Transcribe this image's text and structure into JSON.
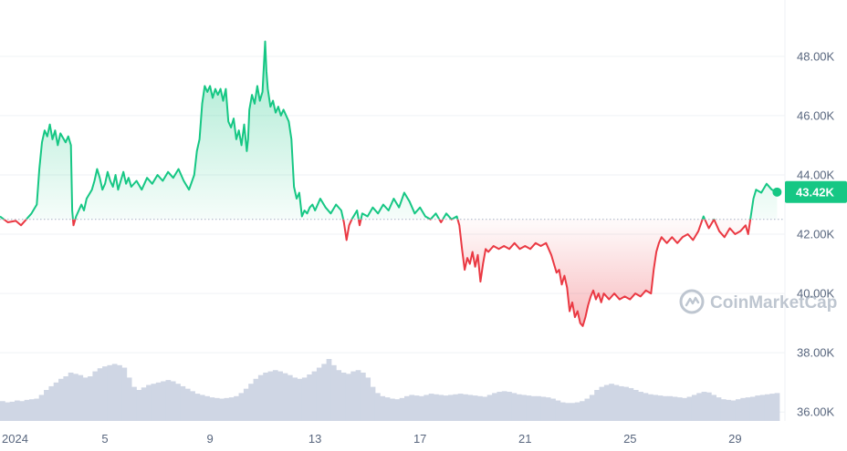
{
  "chart_data": {
    "type": "area",
    "title": "",
    "xlabel": "",
    "ylabel": "",
    "x_tick_labels": [
      "2024",
      "5",
      "9",
      "13",
      "17",
      "21",
      "25",
      "29"
    ],
    "x_tick_days": [
      1,
      5,
      9,
      13,
      17,
      21,
      25,
      29
    ],
    "y_tick_labels": [
      "36.00K",
      "38.00K",
      "40.00K",
      "42.00K",
      "44.00K",
      "46.00K",
      "48.00K"
    ],
    "y_tick_values": [
      36000,
      38000,
      40000,
      42000,
      44000,
      46000,
      48000
    ],
    "ylim": [
      35700,
      49900
    ],
    "xlim": [
      1.0,
      30.9
    ],
    "baseline": 42500,
    "current_price_label": "43.42K",
    "current_price": 43420,
    "colors": {
      "above": "#16c784",
      "below": "#ea3943",
      "price_tag": "#16c784",
      "volume": "#cfd6e4",
      "grid": "#eff2f5",
      "axis_text": "#58667e"
    },
    "watermark": "CoinMarketCap",
    "series": [
      {
        "values": [
          [
            1.0,
            42600
          ],
          [
            1.3,
            42400
          ],
          [
            1.6,
            42450
          ],
          [
            1.8,
            42300
          ],
          [
            2.0,
            42500
          ],
          [
            2.2,
            42700
          ],
          [
            2.4,
            43000
          ],
          [
            2.5,
            44200
          ],
          [
            2.6,
            45100
          ],
          [
            2.7,
            45500
          ],
          [
            2.8,
            45300
          ],
          [
            2.9,
            45700
          ],
          [
            3.0,
            45200
          ],
          [
            3.1,
            45500
          ],
          [
            3.2,
            45000
          ],
          [
            3.3,
            45400
          ],
          [
            3.5,
            45100
          ],
          [
            3.6,
            45300
          ],
          [
            3.7,
            45000
          ],
          [
            3.75,
            42800
          ],
          [
            3.8,
            42300
          ],
          [
            3.9,
            42600
          ],
          [
            4.0,
            42800
          ],
          [
            4.1,
            43000
          ],
          [
            4.2,
            42800
          ],
          [
            4.3,
            43200
          ],
          [
            4.5,
            43500
          ],
          [
            4.6,
            43800
          ],
          [
            4.7,
            44200
          ],
          [
            4.8,
            43900
          ],
          [
            4.9,
            43500
          ],
          [
            5.0,
            43700
          ],
          [
            5.1,
            44100
          ],
          [
            5.2,
            43800
          ],
          [
            5.3,
            43600
          ],
          [
            5.4,
            44000
          ],
          [
            5.5,
            43500
          ],
          [
            5.6,
            43800
          ],
          [
            5.7,
            44100
          ],
          [
            5.8,
            43700
          ],
          [
            5.9,
            43900
          ],
          [
            6.0,
            43600
          ],
          [
            6.2,
            43800
          ],
          [
            6.4,
            43500
          ],
          [
            6.6,
            43900
          ],
          [
            6.8,
            43700
          ],
          [
            7.0,
            44000
          ],
          [
            7.2,
            43800
          ],
          [
            7.4,
            44100
          ],
          [
            7.6,
            43900
          ],
          [
            7.8,
            44200
          ],
          [
            8.0,
            43800
          ],
          [
            8.2,
            43500
          ],
          [
            8.4,
            44000
          ],
          [
            8.5,
            44800
          ],
          [
            8.6,
            45200
          ],
          [
            8.7,
            46400
          ],
          [
            8.8,
            47000
          ],
          [
            8.9,
            46800
          ],
          [
            9.0,
            47000
          ],
          [
            9.1,
            46600
          ],
          [
            9.2,
            46900
          ],
          [
            9.3,
            46700
          ],
          [
            9.4,
            46900
          ],
          [
            9.5,
            46500
          ],
          [
            9.6,
            46900
          ],
          [
            9.7,
            45800
          ],
          [
            9.8,
            45600
          ],
          [
            9.9,
            45900
          ],
          [
            10.0,
            45200
          ],
          [
            10.1,
            45500
          ],
          [
            10.2,
            45000
          ],
          [
            10.3,
            45700
          ],
          [
            10.4,
            44800
          ],
          [
            10.45,
            45200
          ],
          [
            10.5,
            46200
          ],
          [
            10.6,
            46700
          ],
          [
            10.7,
            46400
          ],
          [
            10.8,
            47000
          ],
          [
            10.9,
            46500
          ],
          [
            11.0,
            46800
          ],
          [
            11.1,
            48500
          ],
          [
            11.15,
            47500
          ],
          [
            11.2,
            46900
          ],
          [
            11.3,
            46300
          ],
          [
            11.4,
            46500
          ],
          [
            11.5,
            46100
          ],
          [
            11.6,
            46300
          ],
          [
            11.7,
            46000
          ],
          [
            11.8,
            46200
          ],
          [
            11.9,
            46000
          ],
          [
            12.0,
            45800
          ],
          [
            12.1,
            45200
          ],
          [
            12.2,
            43600
          ],
          [
            12.3,
            43200
          ],
          [
            12.4,
            43400
          ],
          [
            12.5,
            42600
          ],
          [
            12.6,
            42800
          ],
          [
            12.7,
            42700
          ],
          [
            12.8,
            42900
          ],
          [
            12.9,
            43000
          ],
          [
            13.0,
            42800
          ],
          [
            13.2,
            43200
          ],
          [
            13.4,
            42900
          ],
          [
            13.6,
            42700
          ],
          [
            13.8,
            43000
          ],
          [
            14.0,
            42800
          ],
          [
            14.1,
            42400
          ],
          [
            14.2,
            41800
          ],
          [
            14.3,
            42300
          ],
          [
            14.4,
            42500
          ],
          [
            14.6,
            42800
          ],
          [
            14.7,
            42300
          ],
          [
            14.8,
            42700
          ],
          [
            15.0,
            42600
          ],
          [
            15.2,
            42900
          ],
          [
            15.4,
            42700
          ],
          [
            15.6,
            43000
          ],
          [
            15.8,
            42800
          ],
          [
            16.0,
            43200
          ],
          [
            16.2,
            42900
          ],
          [
            16.4,
            43400
          ],
          [
            16.6,
            43100
          ],
          [
            16.8,
            42700
          ],
          [
            17.0,
            42900
          ],
          [
            17.2,
            42600
          ],
          [
            17.4,
            42500
          ],
          [
            17.6,
            42700
          ],
          [
            17.8,
            42400
          ],
          [
            18.0,
            42700
          ],
          [
            18.2,
            42500
          ],
          [
            18.4,
            42600
          ],
          [
            18.5,
            42300
          ],
          [
            18.6,
            41500
          ],
          [
            18.7,
            40800
          ],
          [
            18.8,
            41200
          ],
          [
            18.9,
            41000
          ],
          [
            19.0,
            41400
          ],
          [
            19.1,
            40900
          ],
          [
            19.2,
            41300
          ],
          [
            19.3,
            40400
          ],
          [
            19.4,
            41000
          ],
          [
            19.5,
            41500
          ],
          [
            19.6,
            41400
          ],
          [
            19.8,
            41600
          ],
          [
            20.0,
            41500
          ],
          [
            20.2,
            41600
          ],
          [
            20.4,
            41500
          ],
          [
            20.6,
            41700
          ],
          [
            20.8,
            41500
          ],
          [
            21.0,
            41600
          ],
          [
            21.2,
            41500
          ],
          [
            21.4,
            41700
          ],
          [
            21.6,
            41600
          ],
          [
            21.8,
            41700
          ],
          [
            22.0,
            41300
          ],
          [
            22.1,
            41000
          ],
          [
            22.2,
            40700
          ],
          [
            22.3,
            40800
          ],
          [
            22.4,
            40300
          ],
          [
            22.5,
            40600
          ],
          [
            22.6,
            40200
          ],
          [
            22.7,
            39400
          ],
          [
            22.8,
            39700
          ],
          [
            22.9,
            39200
          ],
          [
            23.0,
            39400
          ],
          [
            23.1,
            39000
          ],
          [
            23.2,
            38900
          ],
          [
            23.3,
            39200
          ],
          [
            23.4,
            39600
          ],
          [
            23.5,
            39900
          ],
          [
            23.6,
            40100
          ],
          [
            23.7,
            39800
          ],
          [
            23.8,
            40000
          ],
          [
            23.9,
            39700
          ],
          [
            24.0,
            40000
          ],
          [
            24.2,
            39800
          ],
          [
            24.4,
            40000
          ],
          [
            24.6,
            39800
          ],
          [
            24.8,
            39900
          ],
          [
            25.0,
            39800
          ],
          [
            25.2,
            40000
          ],
          [
            25.4,
            39900
          ],
          [
            25.6,
            40100
          ],
          [
            25.8,
            40000
          ],
          [
            25.9,
            40800
          ],
          [
            26.0,
            41400
          ],
          [
            26.1,
            41700
          ],
          [
            26.2,
            41900
          ],
          [
            26.4,
            41700
          ],
          [
            26.6,
            41900
          ],
          [
            26.8,
            41700
          ],
          [
            27.0,
            41900
          ],
          [
            27.2,
            42000
          ],
          [
            27.4,
            41800
          ],
          [
            27.6,
            42100
          ],
          [
            27.8,
            42600
          ],
          [
            28.0,
            42200
          ],
          [
            28.2,
            42500
          ],
          [
            28.4,
            42100
          ],
          [
            28.6,
            41900
          ],
          [
            28.8,
            42200
          ],
          [
            29.0,
            42000
          ],
          [
            29.2,
            42100
          ],
          [
            29.4,
            42300
          ],
          [
            29.5,
            42000
          ],
          [
            29.6,
            42600
          ],
          [
            29.7,
            43200
          ],
          [
            29.8,
            43500
          ],
          [
            30.0,
            43400
          ],
          [
            30.2,
            43700
          ],
          [
            30.4,
            43500
          ],
          [
            30.6,
            43420
          ]
        ]
      }
    ],
    "volume": [
      0.32,
      0.3,
      0.31,
      0.33,
      0.32,
      0.34,
      0.35,
      0.36,
      0.42,
      0.5,
      0.56,
      0.62,
      0.68,
      0.72,
      0.78,
      0.76,
      0.74,
      0.7,
      0.72,
      0.8,
      0.85,
      0.88,
      0.9,
      0.92,
      0.9,
      0.86,
      0.7,
      0.55,
      0.5,
      0.54,
      0.58,
      0.6,
      0.62,
      0.64,
      0.66,
      0.64,
      0.6,
      0.56,
      0.52,
      0.48,
      0.44,
      0.42,
      0.4,
      0.38,
      0.37,
      0.36,
      0.37,
      0.38,
      0.4,
      0.45,
      0.52,
      0.6,
      0.68,
      0.74,
      0.78,
      0.8,
      0.82,
      0.8,
      0.77,
      0.74,
      0.7,
      0.68,
      0.7,
      0.75,
      0.8,
      0.86,
      0.92,
      1.0,
      0.9,
      0.82,
      0.78,
      0.76,
      0.8,
      0.82,
      0.78,
      0.7,
      0.55,
      0.45,
      0.4,
      0.38,
      0.36,
      0.35,
      0.37,
      0.4,
      0.42,
      0.41,
      0.4,
      0.42,
      0.44,
      0.43,
      0.42,
      0.41,
      0.42,
      0.43,
      0.44,
      0.43,
      0.42,
      0.41,
      0.4,
      0.39,
      0.42,
      0.45,
      0.47,
      0.48,
      0.47,
      0.45,
      0.43,
      0.42,
      0.41,
      0.4,
      0.4,
      0.39,
      0.38,
      0.36,
      0.33,
      0.3,
      0.29,
      0.29,
      0.3,
      0.32,
      0.36,
      0.42,
      0.5,
      0.55,
      0.58,
      0.6,
      0.58,
      0.56,
      0.55,
      0.53,
      0.5,
      0.47,
      0.45,
      0.43,
      0.42,
      0.41,
      0.4,
      0.4,
      0.39,
      0.38,
      0.37,
      0.39,
      0.42,
      0.45,
      0.47,
      0.46,
      0.42,
      0.38,
      0.35,
      0.34,
      0.33,
      0.35,
      0.37,
      0.38,
      0.39,
      0.41,
      0.42,
      0.43,
      0.44,
      0.45
    ]
  }
}
